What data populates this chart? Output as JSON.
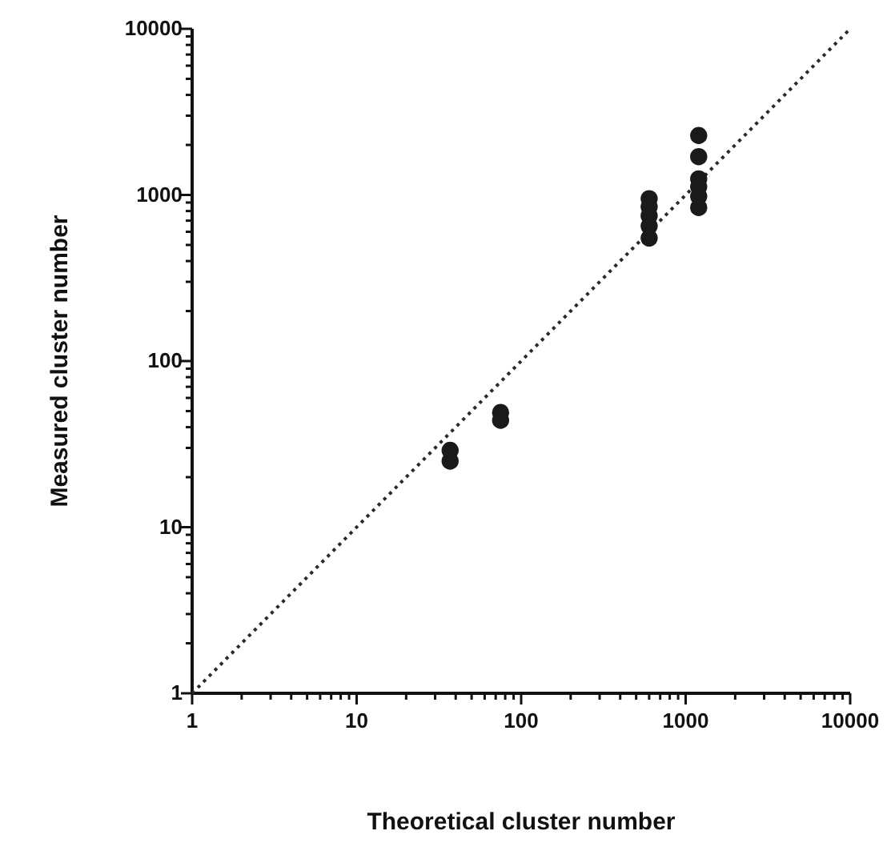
{
  "chart_data": {
    "type": "scatter",
    "xlabel": "Theoretical cluster number",
    "ylabel": "Measured cluster number",
    "log": "xy",
    "xlim": [
      1,
      10000
    ],
    "ylim": [
      1,
      10000
    ],
    "xticks": [
      1,
      {
        "value": 2,
        "label": null
      },
      {
        "value": 3,
        "label": null
      },
      {
        "value": 4,
        "label": null
      },
      {
        "value": 5,
        "label": null
      },
      {
        "value": 6,
        "label": null
      },
      {
        "value": 7,
        "label": null
      },
      {
        "value": 8,
        "label": null
      },
      {
        "value": 9,
        "label": null
      },
      10,
      {
        "value": 20,
        "label": null
      },
      {
        "value": 30,
        "label": null
      },
      {
        "value": 40,
        "label": null
      },
      {
        "value": 50,
        "label": null
      },
      {
        "value": 60,
        "label": null
      },
      {
        "value": 70,
        "label": null
      },
      {
        "value": 80,
        "label": null
      },
      {
        "value": 90,
        "label": null
      },
      100,
      {
        "value": 200,
        "label": null
      },
      {
        "value": 300,
        "label": null
      },
      {
        "value": 400,
        "label": null
      },
      {
        "value": 500,
        "label": null
      },
      {
        "value": 600,
        "label": null
      },
      {
        "value": 700,
        "label": null
      },
      {
        "value": 800,
        "label": null
      },
      {
        "value": 900,
        "label": null
      },
      1000,
      {
        "value": 2000,
        "label": null
      },
      {
        "value": 3000,
        "label": null
      },
      {
        "value": 4000,
        "label": null
      },
      {
        "value": 5000,
        "label": null
      },
      {
        "value": 6000,
        "label": null
      },
      {
        "value": 7000,
        "label": null
      },
      {
        "value": 8000,
        "label": null
      },
      {
        "value": 9000,
        "label": null
      },
      10000
    ],
    "yticks": [
      1,
      {
        "value": 2,
        "label": null
      },
      {
        "value": 3,
        "label": null
      },
      {
        "value": 4,
        "label": null
      },
      {
        "value": 5,
        "label": null
      },
      {
        "value": 6,
        "label": null
      },
      {
        "value": 7,
        "label": null
      },
      {
        "value": 8,
        "label": null
      },
      {
        "value": 9,
        "label": null
      },
      10,
      {
        "value": 20,
        "label": null
      },
      {
        "value": 30,
        "label": null
      },
      {
        "value": 40,
        "label": null
      },
      {
        "value": 50,
        "label": null
      },
      {
        "value": 60,
        "label": null
      },
      {
        "value": 70,
        "label": null
      },
      {
        "value": 80,
        "label": null
      },
      {
        "value": 90,
        "label": null
      },
      100,
      {
        "value": 200,
        "label": null
      },
      {
        "value": 300,
        "label": null
      },
      {
        "value": 400,
        "label": null
      },
      {
        "value": 500,
        "label": null
      },
      {
        "value": 600,
        "label": null
      },
      {
        "value": 700,
        "label": null
      },
      {
        "value": 800,
        "label": null
      },
      {
        "value": 900,
        "label": null
      },
      1000,
      {
        "value": 2000,
        "label": null
      },
      {
        "value": 3000,
        "label": null
      },
      {
        "value": 4000,
        "label": null
      },
      {
        "value": 5000,
        "label": null
      },
      {
        "value": 6000,
        "label": null
      },
      {
        "value": 7000,
        "label": null
      },
      {
        "value": 8000,
        "label": null
      },
      {
        "value": 9000,
        "label": null
      },
      10000
    ],
    "grid": false,
    "series": [
      {
        "type": "line",
        "color": "#2a2a2a",
        "line_style": "dotted",
        "marker": "none",
        "x": [
          1,
          10000
        ],
        "values": [
          1,
          10000
        ]
      },
      {
        "color": "#1a1a1a",
        "marker": "circle",
        "x": [
          37,
          37,
          75,
          75,
          600,
          600,
          600,
          600,
          600,
          1200,
          1200,
          1200,
          1200,
          1200,
          1200
        ],
        "values": [
          29,
          25,
          49,
          44,
          950,
          850,
          750,
          650,
          550,
          2280,
          1700,
          1250,
          1120,
          980,
          840
        ]
      }
    ]
  }
}
